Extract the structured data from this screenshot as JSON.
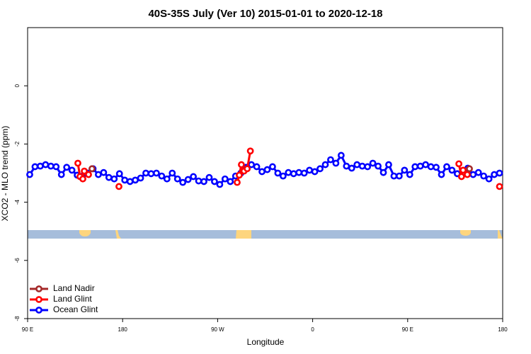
{
  "chart_data": {
    "type": "line",
    "title": "40S-35S July (Ver 10)   2015-01-01 to 2020-12-18",
    "xlabel": "Longitude",
    "ylabel": "XCO2 - MLO trend (ppm)",
    "xlim": [
      90,
      540
    ],
    "ylim": [
      -8,
      2
    ],
    "xticks": [
      {
        "value": 90,
        "label": "90 E"
      },
      180,
      {
        "value": 270,
        "label": "90 W"
      },
      {
        "value": 360,
        "label": "0"
      },
      {
        "value": 450,
        "label": "90 E"
      },
      {
        "value": 540,
        "label": "180"
      }
    ],
    "yticks": [
      -8,
      -6,
      -4,
      -2,
      0
    ],
    "legend": "bottom-left",
    "series": [
      {
        "name": "Land Nadir",
        "color": "#a52a2a",
        "x": [
          151,
          null,
          508.5
        ],
        "values": [
          -2.85,
          null,
          -2.85
        ]
      },
      {
        "name": "Land Glint",
        "color": "#ff0000",
        "x": [
          137.6,
          139.6,
          142.3,
          143.7,
          147.7,
          null,
          176.5,
          null,
          288.5,
          290.5,
          292.5,
          295,
          298,
          301,
          null,
          498.5,
          501,
          502.5,
          506.5,
          null,
          537
        ],
        "values": [
          -2.66,
          -3.12,
          -3.2,
          -2.93,
          -3.05,
          null,
          -3.46,
          null,
          -3.32,
          -3.07,
          -2.71,
          -2.93,
          -2.85,
          -2.24,
          null,
          -2.68,
          -3.12,
          -2.9,
          -3.05,
          null,
          -3.46
        ]
      },
      {
        "name": "Ocean Glint",
        "color": "#0000ff",
        "x": [
          92,
          97,
          102,
          107,
          112,
          117,
          122,
          127,
          132,
          137,
          142,
          147,
          152,
          157,
          162,
          167,
          172,
          177,
          182,
          187,
          192,
          197,
          202,
          207,
          212,
          217,
          222,
          227,
          232,
          237,
          242,
          247,
          252,
          257,
          262,
          267,
          272,
          277,
          282,
          287,
          292,
          297,
          302,
          307,
          312,
          317,
          322,
          327,
          332,
          337,
          342,
          347,
          352,
          357,
          362,
          367,
          372,
          377,
          382,
          387,
          392,
          397,
          402,
          407,
          412,
          417,
          422,
          427,
          432,
          437,
          442,
          447,
          452,
          457,
          462,
          467,
          472,
          477,
          482,
          487,
          492,
          497,
          502,
          507,
          512,
          517,
          522,
          527,
          532,
          537
        ],
        "values": [
          -3.05,
          -2.78,
          -2.76,
          -2.71,
          -2.76,
          -2.78,
          -3.05,
          -2.8,
          -2.9,
          -3.07,
          -3.1,
          -3.0,
          -2.85,
          -3.05,
          -2.98,
          -3.15,
          -3.2,
          -3.02,
          -3.24,
          -3.29,
          -3.24,
          -3.17,
          -3.0,
          -3.02,
          -3.0,
          -3.1,
          -3.2,
          -3.0,
          -3.2,
          -3.32,
          -3.22,
          -3.12,
          -3.27,
          -3.29,
          -3.15,
          -3.29,
          -3.39,
          -3.2,
          -3.29,
          -3.1,
          -3.0,
          -2.8,
          -2.71,
          -2.78,
          -2.95,
          -2.88,
          -2.78,
          -3.0,
          -3.1,
          -2.98,
          -3.02,
          -2.98,
          -3.0,
          -2.9,
          -2.95,
          -2.85,
          -2.71,
          -2.54,
          -2.66,
          -2.39,
          -2.76,
          -2.83,
          -2.71,
          -2.76,
          -2.78,
          -2.66,
          -2.76,
          -2.98,
          -2.71,
          -3.1,
          -3.1,
          -2.9,
          -3.05,
          -2.78,
          -2.76,
          -2.71,
          -2.78,
          -2.8,
          -3.05,
          -2.78,
          -2.9,
          -3.02,
          -3.05,
          -2.83,
          -3.05,
          -2.98,
          -3.1,
          -3.2,
          -3.05,
          -3.0
        ]
      }
    ]
  }
}
